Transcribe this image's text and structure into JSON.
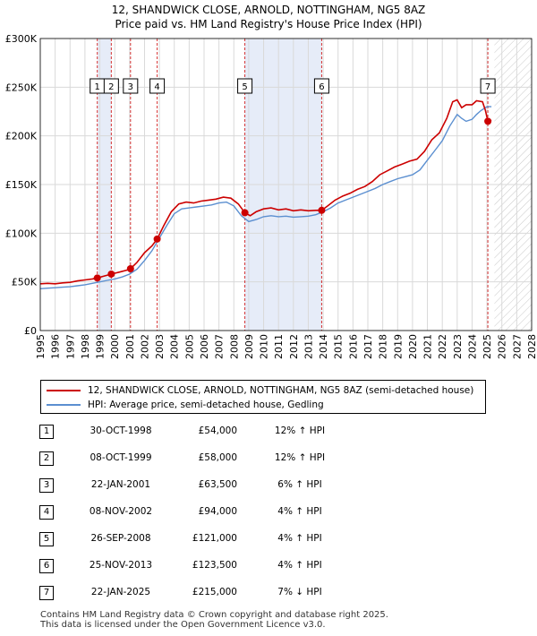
{
  "chart_data": {
    "type": "line",
    "title": "12, SHANDWICK CLOSE, ARNOLD, NOTTINGHAM, NG5 8AZ",
    "subtitle": "Price paid vs. HM Land Registry's House Price Index (HPI)",
    "xlabel": "",
    "ylabel": "",
    "xlim": [
      1995,
      2028
    ],
    "ylim": [
      0,
      300000
    ],
    "y_ticks": [
      0,
      50000,
      100000,
      150000,
      200000,
      250000,
      300000
    ],
    "y_tick_labels": [
      "£0",
      "£50K",
      "£100K",
      "£150K",
      "£200K",
      "£250K",
      "£300K"
    ],
    "x_ticks": [
      1995,
      1996,
      1997,
      1998,
      1999,
      2000,
      2001,
      2002,
      2003,
      2004,
      2005,
      2006,
      2007,
      2008,
      2009,
      2010,
      2011,
      2012,
      2013,
      2014,
      2015,
      2016,
      2017,
      2018,
      2019,
      2020,
      2021,
      2022,
      2023,
      2024,
      2025,
      2026,
      2027,
      2028
    ],
    "x_tick_labels": [
      "1995",
      "1996",
      "1997",
      "1998",
      "1999",
      "2000",
      "2001",
      "2002",
      "2003",
      "2004",
      "2005",
      "2006",
      "2007",
      "2008",
      "2009",
      "2010",
      "2011",
      "2012",
      "2013",
      "2014",
      "2015",
      "2016",
      "2017",
      "2018",
      "2019",
      "2020",
      "2021",
      "2022",
      "2023",
      "2024",
      "2025",
      "2026",
      "2027",
      "2028"
    ],
    "grid": true,
    "legend_position": "below",
    "shaded_periods": [
      [
        1998.83,
        1999.77
      ],
      [
        2008.74,
        2013.9
      ]
    ],
    "future_hatch_start": 2025.5,
    "series": [
      {
        "name": "12, SHANDWICK CLOSE, ARNOLD, NOTTINGHAM, NG5 8AZ (semi-detached house)",
        "color": "#cc0000",
        "x": [
          1995.0,
          1995.5,
          1996.0,
          1996.5,
          1997.0,
          1997.5,
          1998.0,
          1998.5,
          1998.83,
          1999.3,
          1999.77,
          2000.3,
          2000.8,
          2001.06,
          2001.5,
          2002.0,
          2002.5,
          2002.85,
          2003.3,
          2003.8,
          2004.3,
          2004.8,
          2005.3,
          2005.8,
          2006.3,
          2006.8,
          2007.3,
          2007.8,
          2008.3,
          2008.74,
          2009.1,
          2009.5,
          2010.0,
          2010.5,
          2011.0,
          2011.5,
          2012.0,
          2012.5,
          2013.0,
          2013.5,
          2013.9,
          2014.3,
          2014.8,
          2015.3,
          2015.8,
          2016.3,
          2016.8,
          2017.3,
          2017.8,
          2018.3,
          2018.8,
          2019.3,
          2019.8,
          2020.3,
          2020.8,
          2021.3,
          2021.8,
          2022.3,
          2022.7,
          2023.0,
          2023.3,
          2023.6,
          2024.0,
          2024.3,
          2024.7,
          2024.9,
          2025.06,
          2025.3
        ],
        "values": [
          48000,
          48500,
          48000,
          49000,
          49500,
          51000,
          52000,
          53000,
          54000,
          56000,
          58000,
          60000,
          62000,
          63500,
          70000,
          80000,
          87000,
          94000,
          108000,
          122000,
          130000,
          132000,
          131000,
          133000,
          134000,
          135000,
          137000,
          136000,
          130000,
          121000,
          118000,
          122000,
          125000,
          126000,
          124000,
          125000,
          123000,
          124000,
          123000,
          123500,
          123500,
          128000,
          134000,
          138000,
          141000,
          145000,
          148000,
          153000,
          160000,
          164000,
          168000,
          171000,
          174000,
          176000,
          184000,
          196000,
          203000,
          218000,
          235000,
          237000,
          229000,
          232000,
          232000,
          236000,
          235000,
          226000,
          215000,
          216000
        ]
      },
      {
        "name": "HPI: Average price, semi-detached house, Gedling",
        "color": "#5b8fd0",
        "x": [
          1995.0,
          1995.5,
          1996.0,
          1996.5,
          1997.0,
          1997.5,
          1998.0,
          1998.5,
          1999.0,
          1999.5,
          2000.0,
          2000.5,
          2001.0,
          2001.5,
          2002.0,
          2002.5,
          2003.0,
          2003.5,
          2004.0,
          2004.5,
          2005.0,
          2005.5,
          2006.0,
          2006.5,
          2007.0,
          2007.5,
          2008.0,
          2008.5,
          2009.0,
          2009.5,
          2010.0,
          2010.5,
          2011.0,
          2011.5,
          2012.0,
          2012.5,
          2013.0,
          2013.5,
          2014.0,
          2014.5,
          2015.0,
          2015.5,
          2016.0,
          2016.5,
          2017.0,
          2017.5,
          2018.0,
          2018.5,
          2019.0,
          2019.5,
          2020.0,
          2020.5,
          2021.0,
          2021.5,
          2022.0,
          2022.5,
          2023.0,
          2023.3,
          2023.6,
          2024.0,
          2024.3,
          2024.6,
          2025.0,
          2025.3
        ],
        "values": [
          43000,
          43500,
          44000,
          44500,
          45000,
          46000,
          47000,
          48500,
          50000,
          51500,
          53000,
          55000,
          58000,
          63000,
          72000,
          82000,
          95000,
          108000,
          120000,
          125000,
          126000,
          127000,
          128000,
          129000,
          131000,
          132000,
          128000,
          118000,
          112000,
          114000,
          117000,
          118000,
          117000,
          117500,
          116500,
          117000,
          117500,
          119000,
          122000,
          126000,
          131000,
          134000,
          137000,
          140000,
          143000,
          146000,
          150000,
          153000,
          156000,
          158000,
          160000,
          165000,
          175000,
          185000,
          195000,
          210000,
          222000,
          218000,
          215000,
          217000,
          222000,
          226000,
          230000,
          230000
        ]
      }
    ],
    "sales": [
      {
        "n": "1",
        "x": 1998.83,
        "value": 54000
      },
      {
        "n": "2",
        "x": 1999.77,
        "value": 58000
      },
      {
        "n": "3",
        "x": 2001.06,
        "value": 63500
      },
      {
        "n": "4",
        "x": 2002.85,
        "value": 94000
      },
      {
        "n": "5",
        "x": 2008.74,
        "value": 121000
      },
      {
        "n": "6",
        "x": 2013.9,
        "value": 123500
      },
      {
        "n": "7",
        "x": 2025.06,
        "value": 215000
      }
    ]
  },
  "legend": {
    "property_label": "12, SHANDWICK CLOSE, ARNOLD, NOTTINGHAM, NG5 8AZ (semi-detached house)",
    "hpi_label": "HPI: Average price, semi-detached house, Gedling"
  },
  "table": [
    {
      "n": "1",
      "date": "30-OCT-1998",
      "price": "£54,000",
      "hpi": "12% ↑ HPI"
    },
    {
      "n": "2",
      "date": "08-OCT-1999",
      "price": "£58,000",
      "hpi": "12% ↑ HPI"
    },
    {
      "n": "3",
      "date": "22-JAN-2001",
      "price": "£63,500",
      "hpi": "6% ↑ HPI"
    },
    {
      "n": "4",
      "date": "08-NOV-2002",
      "price": "£94,000",
      "hpi": "4% ↑ HPI"
    },
    {
      "n": "5",
      "date": "26-SEP-2008",
      "price": "£121,000",
      "hpi": "4% ↑ HPI"
    },
    {
      "n": "6",
      "date": "25-NOV-2013",
      "price": "£123,500",
      "hpi": "4% ↑ HPI"
    },
    {
      "n": "7",
      "date": "22-JAN-2025",
      "price": "£215,000",
      "hpi": "7% ↓ HPI"
    }
  ],
  "footer": {
    "line1": "Contains HM Land Registry data © Crown copyright and database right 2025.",
    "line2": "This data is licensed under the Open Government Licence v3.0."
  }
}
